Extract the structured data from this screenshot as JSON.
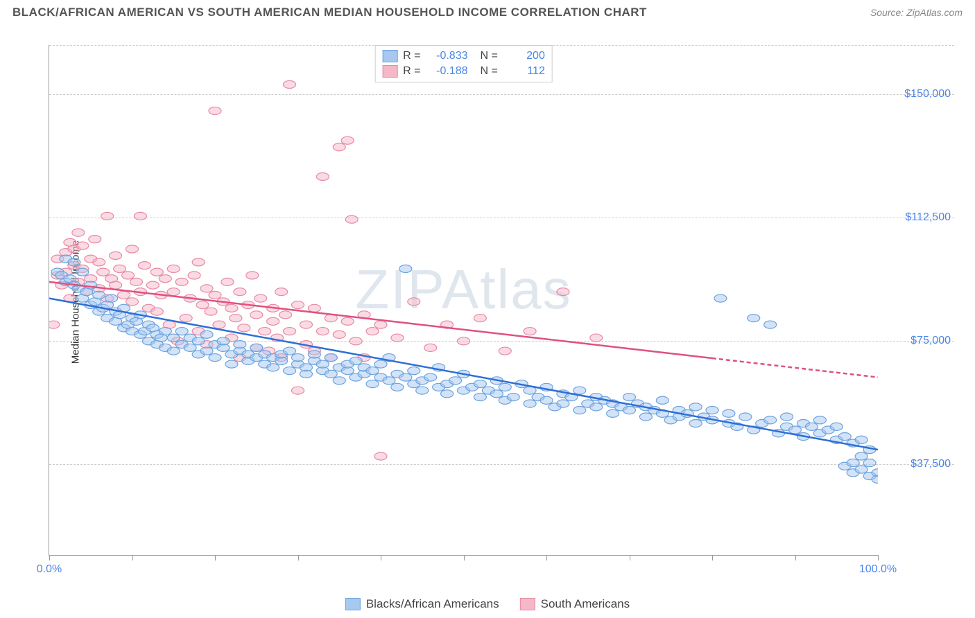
{
  "header": {
    "title": "BLACK/AFRICAN AMERICAN VS SOUTH AMERICAN MEDIAN HOUSEHOLD INCOME CORRELATION CHART",
    "source": "Source: ZipAtlas.com"
  },
  "watermark": "ZIPAtlas",
  "chart": {
    "type": "scatter",
    "ylabel": "Median Household Income",
    "xlim": [
      0,
      100
    ],
    "ylim": [
      10000,
      165000
    ],
    "xticks": [
      0,
      10,
      20,
      30,
      40,
      50,
      60,
      70,
      80,
      90,
      100
    ],
    "xtick_labels": {
      "0": "0.0%",
      "100": "100.0%"
    },
    "yticks": [
      37500,
      75000,
      112500,
      150000
    ],
    "ytick_labels": [
      "$37,500",
      "$75,000",
      "$112,500",
      "$150,000"
    ],
    "grid_color": "#cccccc",
    "background_color": "#ffffff",
    "axis_color": "#999999",
    "series": [
      {
        "name": "Blacks/African Americans",
        "color_fill": "#a8c8f0",
        "color_stroke": "#6ba3e0",
        "fill_opacity": 0.5,
        "marker_radius": 9,
        "R": "-0.833",
        "N": "200",
        "trendline": {
          "x1": 0,
          "y1": 88000,
          "x2": 100,
          "y2": 42000,
          "color": "#2e6fd6",
          "width": 2.5,
          "dash_from_x": null
        },
        "points": [
          [
            1,
            96000
          ],
          [
            1.5,
            95000
          ],
          [
            2,
            100000
          ],
          [
            2,
            93000
          ],
          [
            2.5,
            94000
          ],
          [
            3,
            99000
          ],
          [
            3,
            92000
          ],
          [
            3.5,
            91000
          ],
          [
            4,
            96000
          ],
          [
            4,
            88000
          ],
          [
            4.5,
            90000
          ],
          [
            5,
            92000
          ],
          [
            5,
            86000
          ],
          [
            5.5,
            87000
          ],
          [
            6,
            89000
          ],
          [
            6,
            84000
          ],
          [
            6.5,
            85000
          ],
          [
            7,
            86000
          ],
          [
            7,
            82000
          ],
          [
            7.5,
            88000
          ],
          [
            8,
            84000
          ],
          [
            8,
            81000
          ],
          [
            8.5,
            83000
          ],
          [
            9,
            85000
          ],
          [
            9,
            79000
          ],
          [
            9.5,
            80000
          ],
          [
            10,
            82000
          ],
          [
            10,
            78000
          ],
          [
            10.5,
            81000
          ],
          [
            11,
            83000
          ],
          [
            11,
            77000
          ],
          [
            11.5,
            78000
          ],
          [
            12,
            80000
          ],
          [
            12,
            75000
          ],
          [
            12.5,
            79000
          ],
          [
            13,
            77000
          ],
          [
            13,
            74000
          ],
          [
            13.5,
            76000
          ],
          [
            14,
            78000
          ],
          [
            14,
            73000
          ],
          [
            15,
            76000
          ],
          [
            15,
            72000
          ],
          [
            16,
            74000
          ],
          [
            16,
            78000
          ],
          [
            17,
            73000
          ],
          [
            17,
            76000
          ],
          [
            18,
            75000
          ],
          [
            18,
            71000
          ],
          [
            19,
            72000
          ],
          [
            19,
            77000
          ],
          [
            20,
            74000
          ],
          [
            20,
            70000
          ],
          [
            21,
            73000
          ],
          [
            21,
            75000
          ],
          [
            22,
            71000
          ],
          [
            22,
            68000
          ],
          [
            23,
            72000
          ],
          [
            23,
            74000
          ],
          [
            24,
            69000
          ],
          [
            24,
            71000
          ],
          [
            25,
            70000
          ],
          [
            25,
            73000
          ],
          [
            26,
            68000
          ],
          [
            26,
            71000
          ],
          [
            27,
            70000
          ],
          [
            27,
            67000
          ],
          [
            28,
            69000
          ],
          [
            28,
            71000
          ],
          [
            29,
            66000
          ],
          [
            29,
            72000
          ],
          [
            30,
            68000
          ],
          [
            30,
            70000
          ],
          [
            31,
            67000
          ],
          [
            31,
            65000
          ],
          [
            32,
            69000
          ],
          [
            32,
            71000
          ],
          [
            33,
            66000
          ],
          [
            33,
            68000
          ],
          [
            34,
            65000
          ],
          [
            34,
            70000
          ],
          [
            35,
            67000
          ],
          [
            35,
            63000
          ],
          [
            36,
            66000
          ],
          [
            36,
            68000
          ],
          [
            37,
            64000
          ],
          [
            37,
            69000
          ],
          [
            38,
            65000
          ],
          [
            38,
            67000
          ],
          [
            39,
            66000
          ],
          [
            39,
            62000
          ],
          [
            40,
            64000
          ],
          [
            40,
            68000
          ],
          [
            41,
            63000
          ],
          [
            41,
            70000
          ],
          [
            42,
            65000
          ],
          [
            42,
            61000
          ],
          [
            43,
            97000
          ],
          [
            43,
            64000
          ],
          [
            44,
            62000
          ],
          [
            44,
            66000
          ],
          [
            45,
            63000
          ],
          [
            45,
            60000
          ],
          [
            46,
            64000
          ],
          [
            47,
            61000
          ],
          [
            47,
            67000
          ],
          [
            48,
            62000
          ],
          [
            48,
            59000
          ],
          [
            49,
            63000
          ],
          [
            50,
            60000
          ],
          [
            50,
            65000
          ],
          [
            51,
            61000
          ],
          [
            52,
            58000
          ],
          [
            52,
            62000
          ],
          [
            53,
            60000
          ],
          [
            54,
            59000
          ],
          [
            54,
            63000
          ],
          [
            55,
            57000
          ],
          [
            55,
            61000
          ],
          [
            56,
            58000
          ],
          [
            57,
            62000
          ],
          [
            58,
            56000
          ],
          [
            58,
            60000
          ],
          [
            59,
            58000
          ],
          [
            60,
            57000
          ],
          [
            60,
            61000
          ],
          [
            61,
            55000
          ],
          [
            62,
            59000
          ],
          [
            62,
            56000
          ],
          [
            63,
            58000
          ],
          [
            64,
            54000
          ],
          [
            64,
            60000
          ],
          [
            65,
            56000
          ],
          [
            66,
            55000
          ],
          [
            66,
            58000
          ],
          [
            67,
            57000
          ],
          [
            68,
            53000
          ],
          [
            68,
            56000
          ],
          [
            69,
            55000
          ],
          [
            70,
            54000
          ],
          [
            70,
            58000
          ],
          [
            71,
            56000
          ],
          [
            72,
            52000
          ],
          [
            72,
            55000
          ],
          [
            73,
            54000
          ],
          [
            74,
            53000
          ],
          [
            74,
            57000
          ],
          [
            75,
            51000
          ],
          [
            76,
            54000
          ],
          [
            76,
            52000
          ],
          [
            77,
            53000
          ],
          [
            78,
            50000
          ],
          [
            78,
            55000
          ],
          [
            79,
            52000
          ],
          [
            80,
            51000
          ],
          [
            80,
            54000
          ],
          [
            81,
            88000
          ],
          [
            82,
            50000
          ],
          [
            82,
            53000
          ],
          [
            83,
            49000
          ],
          [
            84,
            52000
          ],
          [
            85,
            48000
          ],
          [
            85,
            82000
          ],
          [
            86,
            50000
          ],
          [
            87,
            51000
          ],
          [
            87,
            80000
          ],
          [
            88,
            47000
          ],
          [
            89,
            49000
          ],
          [
            89,
            52000
          ],
          [
            90,
            48000
          ],
          [
            91,
            50000
          ],
          [
            91,
            46000
          ],
          [
            92,
            49000
          ],
          [
            93,
            47000
          ],
          [
            93,
            51000
          ],
          [
            94,
            48000
          ],
          [
            95,
            45000
          ],
          [
            95,
            49000
          ],
          [
            96,
            46000
          ],
          [
            96,
            37000
          ],
          [
            97,
            35000
          ],
          [
            97,
            44000
          ],
          [
            97,
            38000
          ],
          [
            98,
            40000
          ],
          [
            98,
            36000
          ],
          [
            98,
            45000
          ],
          [
            99,
            34000
          ],
          [
            99,
            38000
          ],
          [
            99,
            42000
          ],
          [
            100,
            35000
          ],
          [
            100,
            33000
          ]
        ]
      },
      {
        "name": "South Americans",
        "color_fill": "#f5b8c8",
        "color_stroke": "#e889a5",
        "fill_opacity": 0.5,
        "marker_radius": 9,
        "R": "-0.188",
        "N": "112",
        "trendline": {
          "x1": 0,
          "y1": 93000,
          "x2": 100,
          "y2": 64000,
          "color": "#e05080",
          "width": 2.5,
          "dash_from_x": 80
        },
        "points": [
          [
            0.5,
            80000
          ],
          [
            1,
            95000
          ],
          [
            1,
            100000
          ],
          [
            1.5,
            92000
          ],
          [
            2,
            102000
          ],
          [
            2,
            96000
          ],
          [
            2.5,
            105000
          ],
          [
            2.5,
            88000
          ],
          [
            3,
            98000
          ],
          [
            3,
            103000
          ],
          [
            3.5,
            93000
          ],
          [
            3.5,
            108000
          ],
          [
            4,
            97000
          ],
          [
            4,
            104000
          ],
          [
            4.5,
            90000
          ],
          [
            5,
            100000
          ],
          [
            5,
            94000
          ],
          [
            5.5,
            106000
          ],
          [
            6,
            91000
          ],
          [
            6,
            99000
          ],
          [
            6.5,
            96000
          ],
          [
            7,
            113000
          ],
          [
            7,
            88000
          ],
          [
            7.5,
            94000
          ],
          [
            8,
            101000
          ],
          [
            8,
            92000
          ],
          [
            8.5,
            97000
          ],
          [
            9,
            89000
          ],
          [
            9.5,
            95000
          ],
          [
            10,
            103000
          ],
          [
            10,
            87000
          ],
          [
            10.5,
            93000
          ],
          [
            11,
            113000
          ],
          [
            11,
            90000
          ],
          [
            11.5,
            98000
          ],
          [
            12,
            85000
          ],
          [
            12.5,
            92000
          ],
          [
            13,
            96000
          ],
          [
            13,
            84000
          ],
          [
            13.5,
            89000
          ],
          [
            14,
            94000
          ],
          [
            14.5,
            80000
          ],
          [
            15,
            97000
          ],
          [
            15,
            90000
          ],
          [
            15.5,
            75000
          ],
          [
            16,
            93000
          ],
          [
            16.5,
            82000
          ],
          [
            17,
            88000
          ],
          [
            17.5,
            95000
          ],
          [
            18,
            78000
          ],
          [
            18,
            99000
          ],
          [
            18.5,
            86000
          ],
          [
            19,
            91000
          ],
          [
            19,
            74000
          ],
          [
            19.5,
            84000
          ],
          [
            20,
            89000
          ],
          [
            20,
            145000
          ],
          [
            20.5,
            80000
          ],
          [
            21,
            87000
          ],
          [
            21.5,
            93000
          ],
          [
            22,
            76000
          ],
          [
            22,
            85000
          ],
          [
            22.5,
            82000
          ],
          [
            23,
            90000
          ],
          [
            23,
            70000
          ],
          [
            23.5,
            79000
          ],
          [
            24,
            86000
          ],
          [
            24.5,
            95000
          ],
          [
            25,
            73000
          ],
          [
            25,
            83000
          ],
          [
            25.5,
            88000
          ],
          [
            26,
            78000
          ],
          [
            26.5,
            72000
          ],
          [
            27,
            85000
          ],
          [
            27,
            81000
          ],
          [
            27.5,
            76000
          ],
          [
            28,
            90000
          ],
          [
            28,
            70000
          ],
          [
            28.5,
            83000
          ],
          [
            29,
            78000
          ],
          [
            29,
            153000
          ],
          [
            30,
            86000
          ],
          [
            30,
            60000
          ],
          [
            31,
            80000
          ],
          [
            31,
            74000
          ],
          [
            32,
            85000
          ],
          [
            32,
            72000
          ],
          [
            33,
            125000
          ],
          [
            33,
            78000
          ],
          [
            34,
            82000
          ],
          [
            34,
            70000
          ],
          [
            35,
            77000
          ],
          [
            35,
            134000
          ],
          [
            36,
            81000
          ],
          [
            36,
            136000
          ],
          [
            36.5,
            112000
          ],
          [
            37,
            75000
          ],
          [
            38,
            83000
          ],
          [
            38,
            70000
          ],
          [
            39,
            78000
          ],
          [
            40,
            80000
          ],
          [
            40,
            40000
          ],
          [
            42,
            76000
          ],
          [
            44,
            87000
          ],
          [
            46,
            73000
          ],
          [
            48,
            80000
          ],
          [
            50,
            75000
          ],
          [
            52,
            82000
          ],
          [
            55,
            72000
          ],
          [
            58,
            78000
          ],
          [
            62,
            90000
          ],
          [
            66,
            76000
          ]
        ]
      }
    ],
    "legend_top": {
      "R_label": "R =",
      "N_label": "N ="
    },
    "bottom_legend": {
      "label1": "Blacks/African Americans",
      "label2": "South Americans"
    }
  }
}
